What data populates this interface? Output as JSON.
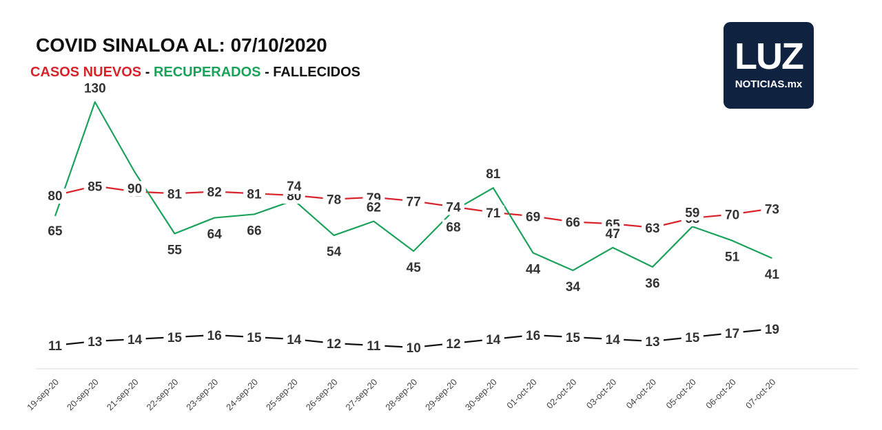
{
  "header": {
    "title": "COVID SINALOA AL: 07/10/2020",
    "legend_new": "CASOS NUEVOS",
    "legend_sep": " - ",
    "legend_recovered": "RECUPERADOS",
    "legend_deaths": "FALLECIDOS"
  },
  "logo": {
    "mark": "LUZ",
    "sub": "NOTICIAS.mx"
  },
  "colors": {
    "new_cases": "#d9232a",
    "recovered": "#1aa15a",
    "deaths": "#111111"
  },
  "chart_data": {
    "type": "line",
    "title": "COVID SINALOA AL: 07/10/2020",
    "x": [
      "19-sep-20",
      "20-sep-20",
      "21-sep-20",
      "22-sep-20",
      "23-sep-20",
      "24-sep-20",
      "25-sep-20",
      "26-sep-20",
      "27-sep-20",
      "28-sep-20",
      "29-sep-20",
      "30-sep-20",
      "01-oct-20",
      "02-oct-20",
      "03-oct-20",
      "04-oct-20",
      "05-oct-20",
      "06-oct-20",
      "07-oct-20"
    ],
    "series": [
      {
        "name": "CASOS NUEVOS",
        "values": [
          80,
          85,
          82,
          81,
          82,
          81,
          80,
          78,
          79,
          77,
          74,
          71,
          69,
          66,
          65,
          63,
          68,
          70,
          73
        ]
      },
      {
        "name": "RECUPERADOS",
        "values": [
          65,
          130,
          90,
          55,
          64,
          66,
          74,
          54,
          62,
          45,
          68,
          81,
          44,
          34,
          47,
          36,
          59,
          51,
          41
        ]
      },
      {
        "name": "FALLECIDOS",
        "values": [
          11,
          13,
          14,
          15,
          16,
          15,
          14,
          12,
          11,
          10,
          12,
          14,
          16,
          15,
          14,
          13,
          15,
          17,
          19
        ]
      }
    ],
    "grid": false,
    "legend": "top-left"
  }
}
